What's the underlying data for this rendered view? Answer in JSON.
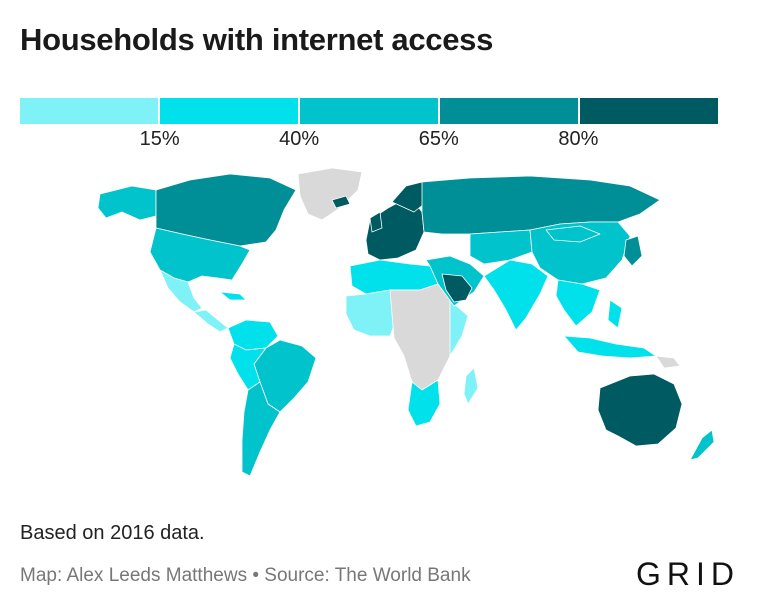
{
  "title": "Households with internet access",
  "legend": {
    "colors": [
      "#7ef2f7",
      "#00e1ec",
      "#00c3cc",
      "#008f96",
      "#005a61"
    ],
    "ticks": [
      "15%",
      "40%",
      "65%",
      "80%"
    ]
  },
  "colors": {
    "nodata": "#d9d9d9",
    "border": "#ffffff"
  },
  "note": "Based on 2016 data.",
  "credit": "Map: Alex Leeds Matthews • Source: The World Bank",
  "logo": "GRID"
}
